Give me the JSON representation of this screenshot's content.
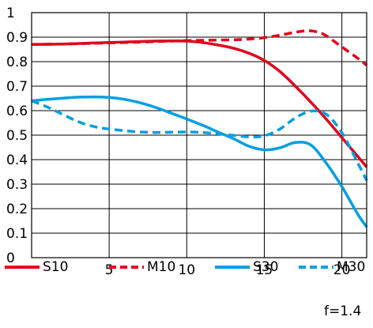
{
  "chart_data": {
    "type": "line",
    "xlim": [
      0,
      21.6
    ],
    "ylim": [
      0,
      1
    ],
    "x_ticks": [
      5,
      10,
      15,
      20
    ],
    "y_ticks": [
      0,
      0.1,
      0.2,
      0.3,
      0.4,
      0.5,
      0.6,
      0.7,
      0.8,
      0.9,
      1
    ],
    "grid": true,
    "legend_position": "bottom",
    "annotation": "f=1.4",
    "series": [
      {
        "name": "S10",
        "color": "#e3001b",
        "style": "solid",
        "x": [
          0,
          2,
          4,
          6,
          8,
          10,
          11,
          12,
          13,
          14,
          15,
          16,
          17,
          18,
          19,
          20,
          21,
          21.6
        ],
        "y": [
          0.87,
          0.872,
          0.876,
          0.88,
          0.884,
          0.884,
          0.878,
          0.868,
          0.855,
          0.835,
          0.805,
          0.76,
          0.7,
          0.635,
          0.565,
          0.49,
          0.415,
          0.37
        ]
      },
      {
        "name": "M10",
        "color": "#e3001b",
        "style": "dashed",
        "x": [
          0,
          2,
          4,
          6,
          8,
          10,
          11,
          12,
          13,
          14,
          15,
          16,
          17,
          17.8,
          18.5,
          19,
          20,
          21,
          21.6
        ],
        "y": [
          0.87,
          0.872,
          0.875,
          0.878,
          0.882,
          0.886,
          0.887,
          0.888,
          0.889,
          0.892,
          0.898,
          0.908,
          0.92,
          0.926,
          0.92,
          0.905,
          0.86,
          0.815,
          0.785
        ]
      },
      {
        "name": "S30",
        "color": "#009fe3",
        "style": "solid",
        "x": [
          0,
          1,
          2,
          3,
          4,
          5,
          6,
          7,
          8,
          9,
          10,
          11,
          12,
          13,
          14,
          15,
          16,
          17,
          18,
          19,
          20,
          21,
          21.6
        ],
        "y": [
          0.64,
          0.646,
          0.651,
          0.655,
          0.656,
          0.654,
          0.646,
          0.632,
          0.613,
          0.59,
          0.566,
          0.541,
          0.513,
          0.486,
          0.455,
          0.44,
          0.448,
          0.47,
          0.46,
          0.385,
          0.29,
          0.18,
          0.125
        ]
      },
      {
        "name": "M30",
        "color": "#009fe3",
        "style": "dashed",
        "x": [
          0,
          1,
          2,
          3,
          4,
          5,
          6,
          7,
          8,
          9,
          10,
          11,
          12,
          13,
          14,
          15,
          16,
          17,
          18,
          19,
          20,
          21,
          21.6
        ],
        "y": [
          0.64,
          0.615,
          0.585,
          0.555,
          0.535,
          0.525,
          0.518,
          0.513,
          0.511,
          0.512,
          0.513,
          0.511,
          0.506,
          0.499,
          0.493,
          0.497,
          0.525,
          0.57,
          0.598,
          0.585,
          0.51,
          0.39,
          0.315
        ]
      }
    ]
  }
}
